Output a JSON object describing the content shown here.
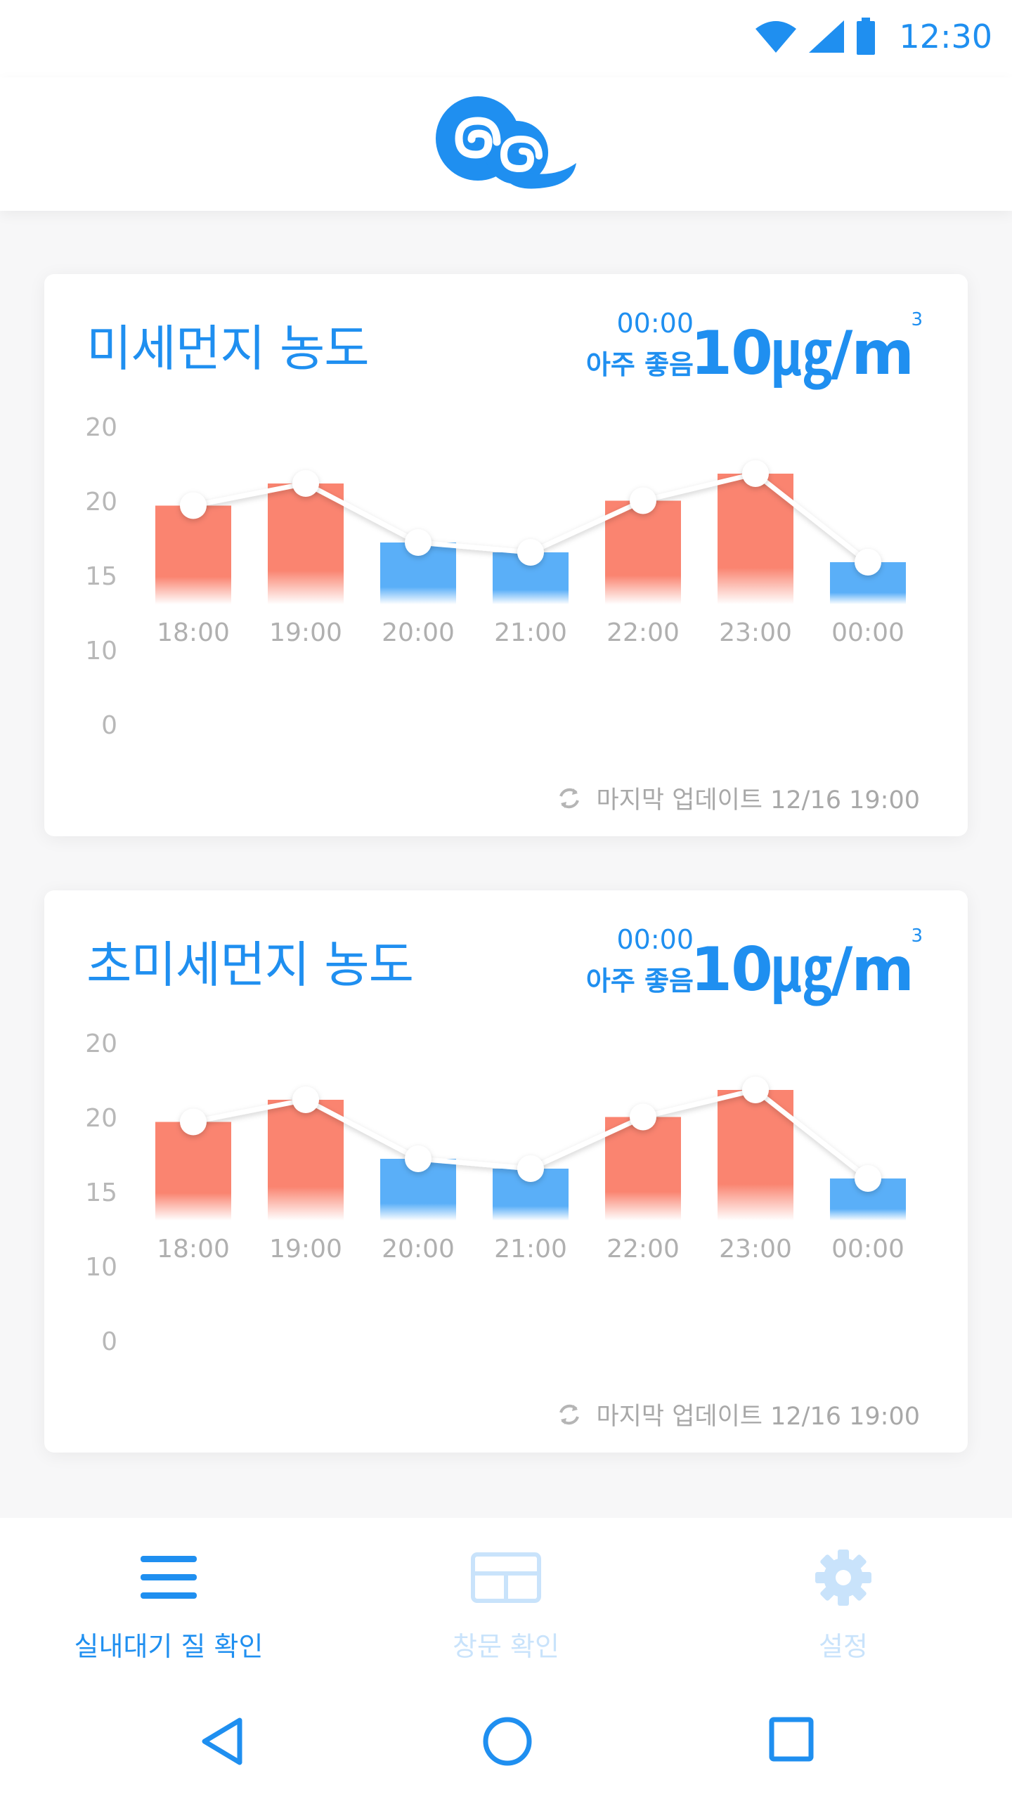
{
  "status_bar": {
    "time": "12:30",
    "icons": [
      "wifi-icon",
      "signal-icon",
      "battery-icon"
    ]
  },
  "header": {
    "logo": "cloud-swirl-logo"
  },
  "colors": {
    "accent": "#1f8ff0",
    "bad": "#fa8470",
    "good": "#5aaff8",
    "inactive": "#c9e3fb"
  },
  "cards": [
    {
      "title": "미세먼지 농도",
      "status_time": "00:00",
      "status_label": "아주 좋음",
      "value": "10㎍/m",
      "value_sup": "3",
      "update_text": "마지막 업데이트 12/16 19:00"
    },
    {
      "title": "초미세먼지 농도",
      "status_time": "00:00",
      "status_label": "아주 좋음",
      "value": "10㎍/m",
      "value_sup": "3",
      "update_text": "마지막 업데이트 12/16 19:00"
    }
  ],
  "chart_data": [
    {
      "type": "bar",
      "categories": [
        "18:00",
        "19:00",
        "20:00",
        "21:00",
        "22:00",
        "23:00",
        "00:00"
      ],
      "values": [
        17.5,
        22,
        10,
        8,
        18.5,
        24,
        6
      ],
      "colors": [
        "#fa8470",
        "#fa8470",
        "#5aaff8",
        "#5aaff8",
        "#fa8470",
        "#fa8470",
        "#5aaff8"
      ],
      "line_overlay": true,
      "ytick_labels": [
        "20",
        "20",
        "15",
        "10",
        "0"
      ],
      "title": "",
      "xlabel": "",
      "ylabel": ""
    },
    {
      "type": "bar",
      "categories": [
        "18:00",
        "19:00",
        "20:00",
        "21:00",
        "22:00",
        "23:00",
        "00:00"
      ],
      "values": [
        17.5,
        22,
        10,
        8,
        18.5,
        24,
        6
      ],
      "colors": [
        "#fa8470",
        "#fa8470",
        "#5aaff8",
        "#5aaff8",
        "#fa8470",
        "#fa8470",
        "#5aaff8"
      ],
      "line_overlay": true,
      "ytick_labels": [
        "20",
        "20",
        "15",
        "10",
        "0"
      ],
      "title": "",
      "xlabel": "",
      "ylabel": ""
    }
  ],
  "bottom_nav": [
    {
      "label": "실내대기 질 확인",
      "icon": "menu-icon",
      "active": true
    },
    {
      "label": "창문 확인",
      "icon": "window-icon",
      "active": false
    },
    {
      "label": "설정",
      "icon": "gear-icon",
      "active": false
    }
  ],
  "system_nav": [
    "back-icon",
    "home-icon",
    "recents-icon"
  ]
}
